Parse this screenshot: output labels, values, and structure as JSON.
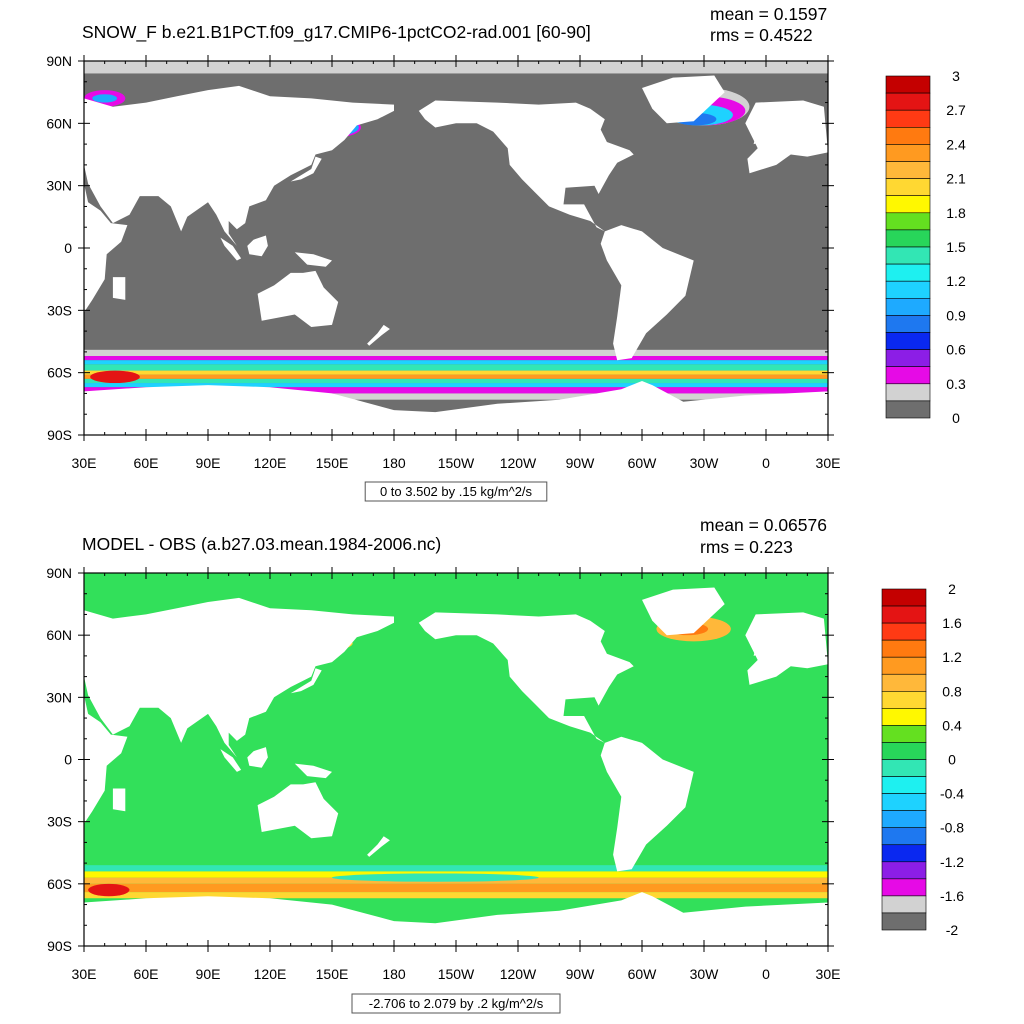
{
  "panels": [
    {
      "title": "SNOW_F b.e21.B1PCT.f09_g17.CMIP6-1pctCO2-rad.001 [60-90]",
      "mean_text": "mean = 0.1597",
      "rms_text": "rms = 0.4522",
      "range_text": "0 to 3.502 by .15 kg/m^2/s",
      "colorbar_labels": [
        "3",
        "2.7",
        "2.4",
        "2.1",
        "1.8",
        "1.5",
        "1.2",
        "0.9",
        "0.6",
        "0.3",
        "0"
      ],
      "colorbar_colors": [
        "#c40000",
        "#e41414",
        "#ff3a14",
        "#ff7a10",
        "#ff9a20",
        "#ffb83a",
        "#ffd832",
        "#fff800",
        "#64e020",
        "#28d65a",
        "#32e6b4",
        "#1ef0f0",
        "#1ed2ff",
        "#1eaaff",
        "#1e78f0",
        "#0a28f0",
        "#8c1ee6",
        "#e60ae6",
        "#d2d2d2",
        "#6e6e6e"
      ]
    },
    {
      "title": "MODEL - OBS (a.b27.03.mean.1984-2006.nc)",
      "mean_text": "mean = 0.06576",
      "rms_text": "rms = 0.223",
      "range_text": "-2.706 to 2.079 by .2 kg/m^2/s",
      "colorbar_labels": [
        "2",
        "1.6",
        "1.2",
        "0.8",
        "0.4",
        "0",
        "-0.4",
        "-0.8",
        "-1.2",
        "-1.6",
        "-2"
      ],
      "colorbar_colors": [
        "#c40000",
        "#e41414",
        "#ff3a14",
        "#ff7a10",
        "#ff9a20",
        "#ffb83a",
        "#ffd832",
        "#fff800",
        "#64e020",
        "#28d65a",
        "#32e6b4",
        "#1ef0f0",
        "#1ed2ff",
        "#1eaaff",
        "#1e78f0",
        "#0a28f0",
        "#8c1ee6",
        "#e60ae6",
        "#d2d2d2",
        "#6e6e6e"
      ]
    }
  ],
  "lat_labels": [
    "90N",
    "60N",
    "30N",
    "0",
    "30S",
    "60S",
    "90S"
  ],
  "lon_labels": [
    "30E",
    "60E",
    "90E",
    "120E",
    "150E",
    "180",
    "150W",
    "120W",
    "90W",
    "60W",
    "30W",
    "0",
    "30E"
  ],
  "colors": {
    "land": "#ffffff",
    "ocean_panel1": "#6e6e6e",
    "ocean_panel2": "#32e05a"
  },
  "chart_data": [
    {
      "type": "heatmap",
      "title": "SNOW_F b.e21.B1PCT.f09_g17.CMIP6-1pctCO2-rad.001 [60-90]",
      "units": "kg/m^2/s",
      "x_ticks": [
        "30E",
        "60E",
        "90E",
        "120E",
        "150E",
        "180",
        "150W",
        "120W",
        "90W",
        "60W",
        "30W",
        "0",
        "30E"
      ],
      "y_ticks": [
        "90N",
        "60N",
        "30N",
        "0",
        "30S",
        "60S",
        "90S"
      ],
      "contour_levels": [
        0,
        0.15,
        0.3,
        0.45,
        0.6,
        0.75,
        0.9,
        1.05,
        1.2,
        1.35,
        1.5,
        1.65,
        1.8,
        1.95,
        2.1,
        2.25,
        2.4,
        2.55,
        2.7,
        2.85,
        3.0
      ],
      "value_range": [
        0,
        3.502
      ],
      "mean": 0.1597,
      "rms": 0.4522
    },
    {
      "type": "heatmap",
      "title": "MODEL - OBS (a.b27.03.mean.1984-2006.nc)",
      "units": "kg/m^2/s",
      "x_ticks": [
        "30E",
        "60E",
        "90E",
        "120E",
        "150E",
        "180",
        "150W",
        "120W",
        "90W",
        "60W",
        "30W",
        "0",
        "30E"
      ],
      "y_ticks": [
        "90N",
        "60N",
        "30N",
        "0",
        "30S",
        "60S",
        "90S"
      ],
      "contour_levels": [
        -2.0,
        -1.8,
        -1.6,
        -1.4,
        -1.2,
        -1.0,
        -0.8,
        -0.6,
        -0.4,
        -0.2,
        0,
        0.2,
        0.4,
        0.6,
        0.8,
        1.0,
        1.2,
        1.4,
        1.6,
        1.8,
        2.0
      ],
      "value_range": [
        -2.706,
        2.079
      ],
      "mean": 0.06576,
      "rms": 0.223
    }
  ]
}
